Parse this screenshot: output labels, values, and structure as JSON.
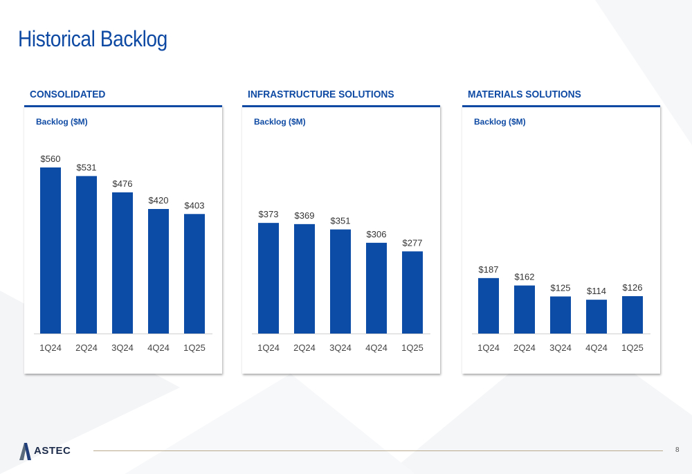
{
  "title": "Historical Backlog",
  "colors": {
    "accent": "#0e4aa3",
    "bar": "#0c4ca6",
    "text": "#333333"
  },
  "panels": [
    {
      "heading": "CONSOLIDATED",
      "ylabel": "Backlog ($M)"
    },
    {
      "heading": "INFRASTRUCTURE SOLUTIONS",
      "ylabel": "Backlog ($M)"
    },
    {
      "heading": "MATERIALS SOLUTIONS",
      "ylabel": "Backlog ($M)"
    }
  ],
  "chart_data": [
    {
      "type": "bar",
      "title": "CONSOLIDATED",
      "ylabel": "Backlog ($M)",
      "categories": [
        "1Q24",
        "2Q24",
        "3Q24",
        "4Q24",
        "1Q25"
      ],
      "values": [
        560,
        531,
        476,
        420,
        403
      ],
      "labels": [
        "$560",
        "$531",
        "$476",
        "$420",
        "$403"
      ],
      "ylim": [
        0,
        560
      ],
      "grid": false,
      "legend": "none"
    },
    {
      "type": "bar",
      "title": "INFRASTRUCTURE SOLUTIONS",
      "ylabel": "Backlog ($M)",
      "categories": [
        "1Q24",
        "2Q24",
        "3Q24",
        "4Q24",
        "1Q25"
      ],
      "values": [
        373,
        369,
        351,
        306,
        277
      ],
      "labels": [
        "$373",
        "$369",
        "$351",
        "$306",
        "$277"
      ],
      "ylim": [
        0,
        560
      ],
      "grid": false,
      "legend": "none"
    },
    {
      "type": "bar",
      "title": "MATERIALS SOLUTIONS",
      "ylabel": "Backlog ($M)",
      "categories": [
        "1Q24",
        "2Q24",
        "3Q24",
        "4Q24",
        "1Q25"
      ],
      "values": [
        187,
        162,
        125,
        114,
        126
      ],
      "labels": [
        "$187",
        "$162",
        "$125",
        "$114",
        "$126"
      ],
      "ylim": [
        0,
        560
      ],
      "grid": false,
      "legend": "none"
    }
  ],
  "footer": {
    "logo_text": "ASTEC",
    "page_number": "8"
  }
}
